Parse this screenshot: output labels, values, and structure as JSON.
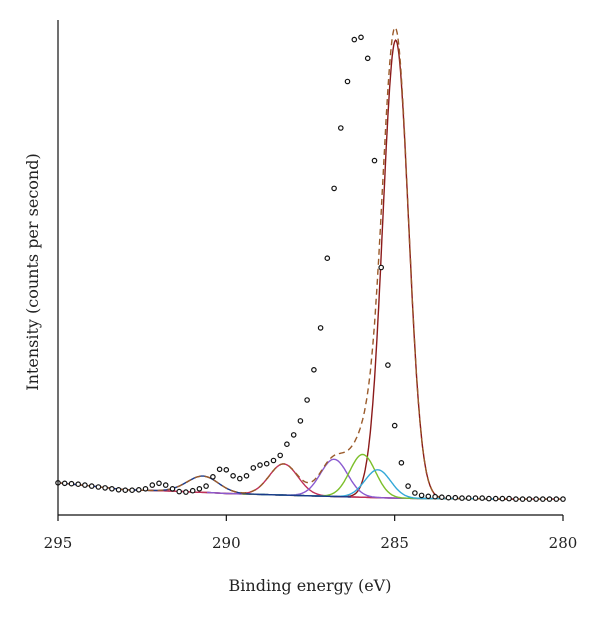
{
  "chart_data": {
    "type": "line",
    "title": "",
    "xlabel": "Binding energy (eV)",
    "ylabel": "Intensity (counts per second)",
    "xlim": [
      295,
      280
    ],
    "x_reversed": true,
    "ylim": [
      0,
      1.0
    ],
    "y_tick_labels_shown": false,
    "grid": false,
    "legend": "none",
    "x_ticks": [
      295,
      290,
      285,
      280
    ],
    "x_tick_labels": [
      "295",
      "290",
      "285",
      "280"
    ],
    "measured": {
      "name": "",
      "style": "open-circle-markers",
      "color": "#111111",
      "x": [
        295.0,
        294.8,
        294.6,
        294.4,
        294.2,
        294.0,
        293.8,
        293.6,
        293.4,
        293.2,
        293.0,
        292.8,
        292.6,
        292.4,
        292.2,
        292.0,
        291.8,
        291.6,
        291.4,
        291.2,
        291.0,
        290.8,
        290.6,
        290.4,
        290.2,
        290.0,
        289.8,
        289.6,
        289.4,
        289.2,
        289.0,
        288.8,
        288.6,
        288.4,
        288.2,
        288.0,
        287.8,
        287.6,
        287.4,
        287.2,
        287.0,
        286.8,
        286.6,
        286.4,
        286.2,
        286.0,
        285.8,
        285.6,
        285.4,
        285.2,
        285.0,
        284.8,
        284.6,
        284.4,
        284.2,
        284.0,
        283.8,
        283.6,
        283.4,
        283.2,
        283.0,
        282.8,
        282.6,
        282.4,
        282.2,
        282.0,
        281.8,
        281.6,
        281.4,
        281.2,
        281.0,
        280.8,
        280.6,
        280.4,
        280.2,
        280.0
      ],
      "y": [
        0.037,
        0.036,
        0.035,
        0.034,
        0.032,
        0.03,
        0.028,
        0.026,
        0.024,
        0.022,
        0.021,
        0.021,
        0.022,
        0.024,
        0.032,
        0.036,
        0.032,
        0.024,
        0.018,
        0.017,
        0.02,
        0.024,
        0.03,
        0.05,
        0.066,
        0.065,
        0.052,
        0.046,
        0.052,
        0.069,
        0.075,
        0.078,
        0.085,
        0.096,
        0.12,
        0.14,
        0.17,
        0.215,
        0.28,
        0.37,
        0.52,
        0.67,
        0.8,
        0.9,
        0.99,
        0.995,
        0.95,
        0.73,
        0.5,
        0.29,
        0.16,
        0.08,
        0.03,
        0.015,
        0.01,
        0.008,
        0.007,
        0.006,
        0.005,
        0.005,
        0.004,
        0.004,
        0.004,
        0.004,
        0.003,
        0.003,
        0.003,
        0.003,
        0.002,
        0.002,
        0.002,
        0.002,
        0.002,
        0.002,
        0.002,
        0.002
      ]
    },
    "envelope": {
      "name": "",
      "style": "dashed",
      "color": "#9a5a2a"
    },
    "background": {
      "name": "",
      "style": "solid",
      "color": "#8b1a1a",
      "x": [
        295.0,
        294.0,
        293.0,
        292.0,
        291.5,
        291.0,
        290.5,
        290.0,
        289.0,
        288.0,
        287.0,
        286.0,
        285.0,
        284.0,
        283.0,
        282.0,
        281.0,
        280.0
      ],
      "y": [
        0.037,
        0.03,
        0.022,
        0.02,
        0.019,
        0.017,
        0.016,
        0.014,
        0.012,
        0.01,
        0.008,
        0.006,
        0.004,
        0.003,
        0.003,
        0.002,
        0.002,
        0.002
      ]
    },
    "components": [
      {
        "name": "",
        "color": "#8b1a1a",
        "center": 284.97,
        "amplitude": 0.985,
        "fwhm": 0.9
      },
      {
        "name": "",
        "color": "#c0305a",
        "center": 288.3,
        "amplitude": 0.067,
        "fwhm": 1.0
      },
      {
        "name": "",
        "color": "#8a5ad0",
        "center": 286.8,
        "amplitude": 0.08,
        "fwhm": 0.95
      },
      {
        "name": "",
        "color": "#7cbf2a",
        "center": 285.95,
        "amplitude": 0.092,
        "fwhm": 0.9
      },
      {
        "name": "",
        "color": "#33a8d8",
        "center": 285.5,
        "amplitude": 0.06,
        "fwhm": 0.9
      },
      {
        "name": "",
        "color": "#1a3a8a",
        "center": 290.7,
        "amplitude": 0.035,
        "fwhm": 1.1
      }
    ]
  }
}
